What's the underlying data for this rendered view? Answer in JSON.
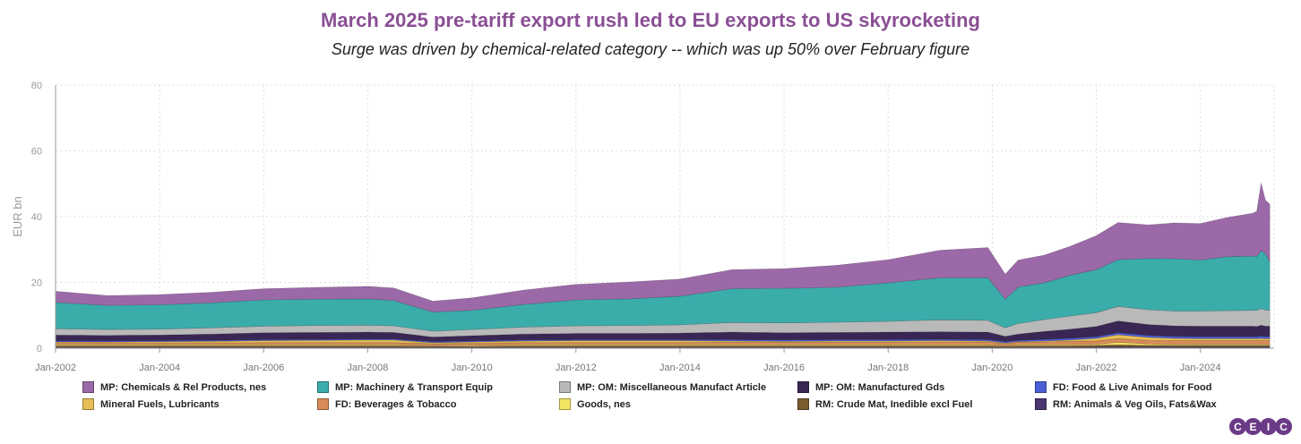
{
  "title": "March 2025 pre-tariff export rush led to EU exports to US skyrocketing",
  "subtitle": "Surge was driven by chemical-related category -- which was up 50% over February figure",
  "brand": "CEIC",
  "brand_letters": [
    "C",
    "E",
    "I",
    "C"
  ],
  "chart_data": {
    "type": "area",
    "stacked": true,
    "ylabel": "EUR bn",
    "xlabel": "",
    "ylim": [
      0,
      80
    ],
    "yticks": [
      0,
      20,
      40,
      60,
      80
    ],
    "xrange": [
      "2002-01",
      "2025-06"
    ],
    "xticks": [
      "Jan-2002",
      "Jan-2004",
      "Jan-2006",
      "Jan-2008",
      "Jan-2010",
      "Jan-2012",
      "Jan-2014",
      "Jan-2016",
      "Jan-2018",
      "Jan-2020",
      "Jan-2022",
      "Jan-2024"
    ],
    "grid": true,
    "legend_position": "bottom",
    "x": [
      "2002-01",
      "2003-01",
      "2004-01",
      "2005-01",
      "2006-01",
      "2007-01",
      "2008-01",
      "2008-07",
      "2009-04",
      "2010-01",
      "2011-01",
      "2012-01",
      "2013-01",
      "2014-01",
      "2015-01",
      "2016-01",
      "2017-01",
      "2018-01",
      "2019-01",
      "2019-12",
      "2020-04",
      "2020-07",
      "2021-01",
      "2021-07",
      "2022-01",
      "2022-06",
      "2023-01",
      "2023-07",
      "2024-01",
      "2024-07",
      "2025-01",
      "2025-02",
      "2025-03",
      "2025-04",
      "2025-05"
    ],
    "series": [
      {
        "name": "RM: Animals & Veg Oils, Fats&Wax",
        "color": "#4a3570",
        "values": [
          0.3,
          0.3,
          0.3,
          0.3,
          0.3,
          0.3,
          0.3,
          0.3,
          0.3,
          0.3,
          0.3,
          0.3,
          0.3,
          0.3,
          0.3,
          0.3,
          0.3,
          0.3,
          0.3,
          0.3,
          0.3,
          0.3,
          0.3,
          0.3,
          0.4,
          0.4,
          0.4,
          0.4,
          0.4,
          0.4,
          0.4,
          0.4,
          0.4,
          0.4,
          0.4
        ]
      },
      {
        "name": "RM: Crude Mat, Inedible excl Fuel",
        "color": "#7a5a2e",
        "values": [
          0.4,
          0.4,
          0.4,
          0.4,
          0.4,
          0.4,
          0.4,
          0.4,
          0.3,
          0.3,
          0.4,
          0.4,
          0.4,
          0.4,
          0.4,
          0.4,
          0.4,
          0.4,
          0.4,
          0.4,
          0.3,
          0.4,
          0.4,
          0.5,
          0.5,
          0.6,
          0.5,
          0.5,
          0.5,
          0.5,
          0.5,
          0.5,
          0.5,
          0.5,
          0.5
        ]
      },
      {
        "name": "Goods, nes",
        "color": "#f3e563",
        "values": [
          0.3,
          0.3,
          0.3,
          0.3,
          0.3,
          0.3,
          0.3,
          0.3,
          0.2,
          0.3,
          0.3,
          0.3,
          0.3,
          0.3,
          0.3,
          0.3,
          0.3,
          0.3,
          0.3,
          0.3,
          0.2,
          0.3,
          0.3,
          0.3,
          0.3,
          0.8,
          0.4,
          0.3,
          0.3,
          0.3,
          0.3,
          0.3,
          0.3,
          0.3,
          0.3
        ]
      },
      {
        "name": "FD: Beverages & Tobacco",
        "color": "#d98b5a",
        "values": [
          0.6,
          0.6,
          0.6,
          0.6,
          0.7,
          0.7,
          0.7,
          0.7,
          0.6,
          0.6,
          0.7,
          0.7,
          0.7,
          0.7,
          0.8,
          0.8,
          0.8,
          0.8,
          0.9,
          0.9,
          0.6,
          0.8,
          0.9,
          1.0,
          1.0,
          1.1,
          1.1,
          1.1,
          1.1,
          1.1,
          1.1,
          1.1,
          1.2,
          1.1,
          1.1
        ]
      },
      {
        "name": "Mineral Fuels, Lubricants",
        "color": "#e7bd55",
        "values": [
          0.3,
          0.3,
          0.4,
          0.5,
          0.6,
          0.7,
          0.8,
          0.8,
          0.3,
          0.4,
          0.5,
          0.6,
          0.6,
          0.6,
          0.4,
          0.3,
          0.4,
          0.4,
          0.4,
          0.3,
          0.2,
          0.2,
          0.3,
          0.4,
          0.8,
          1.2,
          0.9,
          0.7,
          0.6,
          0.6,
          0.6,
          0.6,
          0.6,
          0.6,
          0.6
        ]
      },
      {
        "name": "FD: Food & Live Animals for Food",
        "color": "#4a5fd6",
        "values": [
          0.3,
          0.3,
          0.3,
          0.3,
          0.3,
          0.3,
          0.3,
          0.3,
          0.3,
          0.3,
          0.3,
          0.3,
          0.3,
          0.3,
          0.4,
          0.4,
          0.4,
          0.4,
          0.4,
          0.4,
          0.4,
          0.4,
          0.5,
          0.5,
          0.5,
          0.6,
          0.6,
          0.6,
          0.6,
          0.6,
          0.6,
          0.6,
          0.7,
          0.6,
          0.6
        ]
      },
      {
        "name": "MP: OM: Manufactured Gds",
        "color": "#3a2654",
        "values": [
          1.8,
          1.7,
          1.7,
          1.9,
          2.1,
          2.1,
          2.1,
          2.0,
          1.4,
          1.6,
          1.8,
          1.9,
          1.9,
          2.0,
          2.3,
          2.2,
          2.2,
          2.3,
          2.3,
          2.3,
          1.6,
          1.9,
          2.4,
          2.8,
          3.1,
          3.6,
          3.3,
          3.2,
          3.2,
          3.2,
          3.2,
          3.1,
          3.3,
          3.2,
          3.2
        ]
      },
      {
        "name": "MP: OM: Miscellaneous Manufact Article",
        "color": "#b9b9b9",
        "values": [
          1.9,
          1.8,
          1.8,
          1.9,
          2.0,
          2.1,
          2.1,
          2.0,
          1.8,
          1.9,
          2.1,
          2.3,
          2.4,
          2.5,
          2.9,
          3.0,
          3.1,
          3.3,
          3.6,
          3.6,
          2.6,
          3.2,
          3.6,
          4.0,
          4.2,
          4.4,
          4.5,
          4.5,
          4.6,
          4.7,
          4.8,
          4.9,
          5.0,
          4.9,
          4.9
        ]
      },
      {
        "name": "MP: Machinery & Transport Equip",
        "color": "#3aadab",
        "values": [
          8.0,
          7.3,
          7.4,
          7.6,
          8.0,
          8.0,
          8.0,
          7.7,
          5.8,
          5.8,
          6.9,
          7.9,
          8.1,
          8.7,
          10.3,
          10.5,
          10.6,
          11.7,
          12.8,
          12.9,
          8.7,
          11.1,
          11.2,
          12.4,
          13.1,
          14.2,
          15.6,
          15.9,
          15.5,
          16.4,
          16.5,
          16.4,
          17.7,
          17.2,
          14.6
        ]
      },
      {
        "name": "MP: Chemicals & Rel Products, nes",
        "color": "#9c69a8",
        "values": [
          3.4,
          3.0,
          3.1,
          3.2,
          3.4,
          3.6,
          3.8,
          3.8,
          3.3,
          3.8,
          4.4,
          4.7,
          5.1,
          5.2,
          5.8,
          6.0,
          6.7,
          7.0,
          8.4,
          9.2,
          7.6,
          8.2,
          8.4,
          8.8,
          10.3,
          11.3,
          10.2,
          10.9,
          11.1,
          11.9,
          13.0,
          13.7,
          20.5,
          16.2,
          17.6
        ]
      }
    ]
  }
}
